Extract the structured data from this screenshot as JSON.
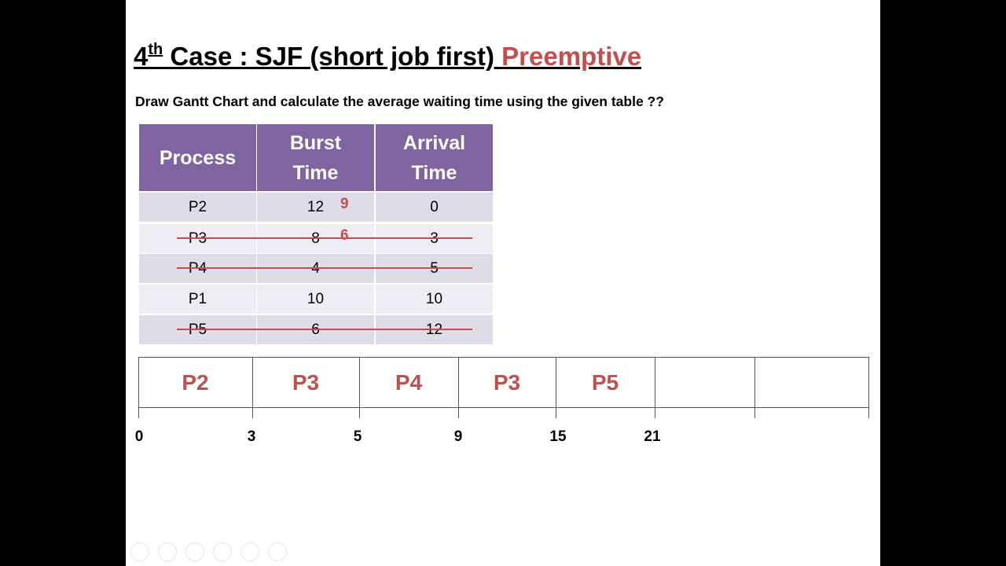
{
  "title": {
    "number": "4",
    "superscript": "th",
    "text": "Case : SJF (short job first)",
    "highlight": "Preemptive"
  },
  "instruction": "Draw Gantt Chart and calculate the average waiting time using the given table ??",
  "table": {
    "header": [
      "Process",
      "Burst Time",
      "Arrival Time"
    ],
    "rows": [
      {
        "cells": [
          "P2",
          "12",
          "0"
        ],
        "note": "9",
        "struck": false
      },
      {
        "cells": [
          "P3",
          "8",
          "3"
        ],
        "note": "6",
        "struck": true
      },
      {
        "cells": [
          "P4",
          "4",
          "5"
        ],
        "struck": true
      },
      {
        "cells": [
          "P1",
          "10",
          "10"
        ],
        "struck": false
      },
      {
        "cells": [
          "P5",
          "6",
          "12"
        ],
        "struck": true
      }
    ]
  },
  "gantt": {
    "blocks": [
      "P2",
      "P3",
      "P4",
      "P3",
      "P5"
    ],
    "times": [
      "0",
      "3",
      "5",
      "9",
      "15",
      "21"
    ]
  }
}
